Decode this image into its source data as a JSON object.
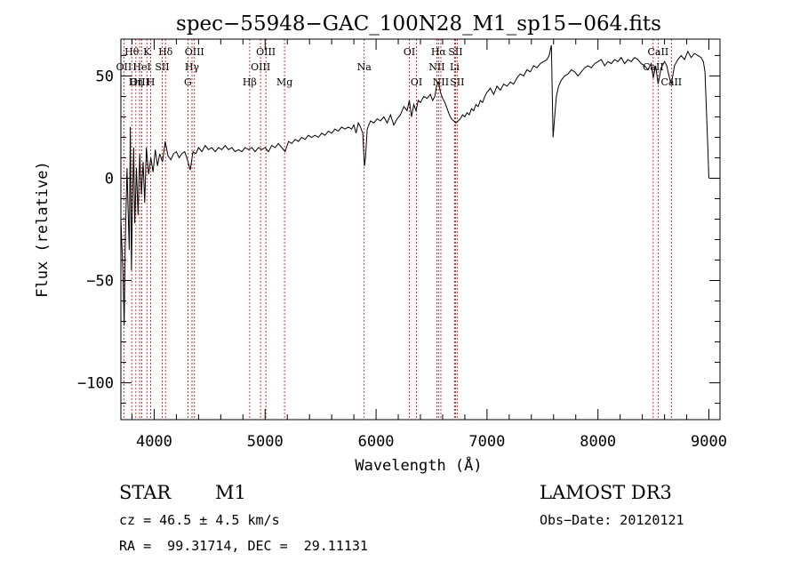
{
  "chart_data": {
    "type": "line",
    "title": "spec−55948−GAC_100N28_M1_sp15−064.fits",
    "xlabel": "Wavelength (Å)",
    "ylabel": "Flux (relative)",
    "xlim": [
      3700,
      9100
    ],
    "ylim": [
      -118,
      68
    ],
    "xticks": [
      4000,
      5000,
      6000,
      7000,
      8000,
      9000
    ],
    "xtick_labels": [
      "4000",
      "5000",
      "6000",
      "7000",
      "8000",
      "9000"
    ],
    "yticks": [
      -100,
      -50,
      0,
      50
    ],
    "ytick_labels": [
      "−100",
      "−50",
      "0",
      "50"
    ],
    "series": [
      {
        "name": "spectrum",
        "points": [
          [
            3700,
            -20
          ],
          [
            3720,
            -48
          ],
          [
            3730,
            -72
          ],
          [
            3740,
            -30
          ],
          [
            3755,
            5
          ],
          [
            3765,
            -15
          ],
          [
            3775,
            -35
          ],
          [
            3785,
            25
          ],
          [
            3795,
            -45
          ],
          [
            3805,
            -10
          ],
          [
            3815,
            15
          ],
          [
            3825,
            -22
          ],
          [
            3840,
            5
          ],
          [
            3855,
            -18
          ],
          [
            3870,
            12
          ],
          [
            3885,
            -8
          ],
          [
            3900,
            8
          ],
          [
            3915,
            -12
          ],
          [
            3930,
            15
          ],
          [
            3950,
            2
          ],
          [
            3970,
            10
          ],
          [
            3990,
            3
          ],
          [
            4010,
            14
          ],
          [
            4030,
            6
          ],
          [
            4050,
            12
          ],
          [
            4075,
            8
          ],
          [
            4100,
            18
          ],
          [
            4125,
            11
          ],
          [
            4150,
            9
          ],
          [
            4175,
            12
          ],
          [
            4200,
            13
          ],
          [
            4225,
            10
          ],
          [
            4250,
            12
          ],
          [
            4275,
            13
          ],
          [
            4300,
            9
          ],
          [
            4325,
            4
          ],
          [
            4350,
            13
          ],
          [
            4375,
            12
          ],
          [
            4400,
            15
          ],
          [
            4430,
            13
          ],
          [
            4460,
            16
          ],
          [
            4490,
            14
          ],
          [
            4520,
            15
          ],
          [
            4550,
            13
          ],
          [
            4580,
            15
          ],
          [
            4610,
            14
          ],
          [
            4640,
            16
          ],
          [
            4670,
            14
          ],
          [
            4700,
            15
          ],
          [
            4730,
            13
          ],
          [
            4760,
            14
          ],
          [
            4790,
            13
          ],
          [
            4820,
            15
          ],
          [
            4850,
            14
          ],
          [
            4880,
            15
          ],
          [
            4910,
            13
          ],
          [
            4940,
            15
          ],
          [
            4970,
            14
          ],
          [
            5000,
            15
          ],
          [
            5030,
            13
          ],
          [
            5060,
            16
          ],
          [
            5090,
            15
          ],
          [
            5120,
            17
          ],
          [
            5150,
            15
          ],
          [
            5180,
            13
          ],
          [
            5210,
            18
          ],
          [
            5240,
            17
          ],
          [
            5270,
            19
          ],
          [
            5300,
            18
          ],
          [
            5330,
            20
          ],
          [
            5360,
            19
          ],
          [
            5390,
            21
          ],
          [
            5420,
            20
          ],
          [
            5450,
            21
          ],
          [
            5480,
            20
          ],
          [
            5510,
            22
          ],
          [
            5540,
            21
          ],
          [
            5570,
            23
          ],
          [
            5600,
            22
          ],
          [
            5630,
            24
          ],
          [
            5660,
            23
          ],
          [
            5690,
            25
          ],
          [
            5720,
            24
          ],
          [
            5750,
            25
          ],
          [
            5780,
            24
          ],
          [
            5800,
            26
          ],
          [
            5820,
            22
          ],
          [
            5840,
            27
          ],
          [
            5860,
            25
          ],
          [
            5880,
            22
          ],
          [
            5895,
            6
          ],
          [
            5905,
            10
          ],
          [
            5920,
            24
          ],
          [
            5950,
            28
          ],
          [
            5980,
            27
          ],
          [
            6010,
            29
          ],
          [
            6040,
            28
          ],
          [
            6070,
            30
          ],
          [
            6100,
            27
          ],
          [
            6130,
            31
          ],
          [
            6160,
            26
          ],
          [
            6190,
            29
          ],
          [
            6220,
            31
          ],
          [
            6250,
            35
          ],
          [
            6280,
            33
          ],
          [
            6300,
            38
          ],
          [
            6320,
            30
          ],
          [
            6340,
            36
          ],
          [
            6360,
            33
          ],
          [
            6380,
            38
          ],
          [
            6400,
            37
          ],
          [
            6430,
            40
          ],
          [
            6460,
            39
          ],
          [
            6490,
            41
          ],
          [
            6510,
            38
          ],
          [
            6530,
            40
          ],
          [
            6545,
            45
          ],
          [
            6563,
            47
          ],
          [
            6580,
            42
          ],
          [
            6600,
            39
          ],
          [
            6620,
            37
          ],
          [
            6640,
            34
          ],
          [
            6660,
            31
          ],
          [
            6680,
            29
          ],
          [
            6700,
            28
          ],
          [
            6720,
            27
          ],
          [
            6740,
            28
          ],
          [
            6760,
            29
          ],
          [
            6780,
            31
          ],
          [
            6800,
            30
          ],
          [
            6820,
            32
          ],
          [
            6840,
            31
          ],
          [
            6860,
            34
          ],
          [
            6880,
            33
          ],
          [
            6900,
            36
          ],
          [
            6920,
            35
          ],
          [
            6940,
            38
          ],
          [
            6960,
            37
          ],
          [
            6980,
            40
          ],
          [
            7000,
            42
          ],
          [
            7030,
            44
          ],
          [
            7060,
            41
          ],
          [
            7090,
            45
          ],
          [
            7120,
            43
          ],
          [
            7150,
            46
          ],
          [
            7180,
            45
          ],
          [
            7210,
            47
          ],
          [
            7240,
            46
          ],
          [
            7270,
            49
          ],
          [
            7300,
            51
          ],
          [
            7330,
            50
          ],
          [
            7360,
            53
          ],
          [
            7390,
            52
          ],
          [
            7420,
            55
          ],
          [
            7450,
            54
          ],
          [
            7480,
            56
          ],
          [
            7510,
            57
          ],
          [
            7540,
            58
          ],
          [
            7560,
            60
          ],
          [
            7580,
            65
          ],
          [
            7595,
            20
          ],
          [
            7610,
            30
          ],
          [
            7625,
            40
          ],
          [
            7645,
            45
          ],
          [
            7670,
            48
          ],
          [
            7700,
            50
          ],
          [
            7730,
            51
          ],
          [
            7760,
            53
          ],
          [
            7790,
            52
          ],
          [
            7820,
            50
          ],
          [
            7850,
            52
          ],
          [
            7880,
            54
          ],
          [
            7910,
            55
          ],
          [
            7940,
            54
          ],
          [
            7970,
            56
          ],
          [
            8000,
            57
          ],
          [
            8030,
            58
          ],
          [
            8060,
            55
          ],
          [
            8090,
            57
          ],
          [
            8120,
            56
          ],
          [
            8150,
            58
          ],
          [
            8180,
            57
          ],
          [
            8210,
            59
          ],
          [
            8240,
            56
          ],
          [
            8270,
            58
          ],
          [
            8300,
            57
          ],
          [
            8330,
            59
          ],
          [
            8360,
            58
          ],
          [
            8390,
            56
          ],
          [
            8420,
            55
          ],
          [
            8450,
            53
          ],
          [
            8480,
            56
          ],
          [
            8498,
            49
          ],
          [
            8520,
            55
          ],
          [
            8542,
            46
          ],
          [
            8570,
            54
          ],
          [
            8600,
            57
          ],
          [
            8620,
            55
          ],
          [
            8640,
            50
          ],
          [
            8662,
            46
          ],
          [
            8690,
            55
          ],
          [
            8720,
            58
          ],
          [
            8750,
            60
          ],
          [
            8780,
            58
          ],
          [
            8810,
            62
          ],
          [
            8840,
            59
          ],
          [
            8870,
            61
          ],
          [
            8900,
            60
          ],
          [
            8930,
            59
          ],
          [
            8950,
            57
          ],
          [
            8965,
            52
          ],
          [
            8980,
            30
          ],
          [
            8990,
            15
          ],
          [
            9000,
            0
          ]
        ]
      }
    ],
    "spectral_lines": [
      {
        "label": "Hθ",
        "x": 3798,
        "row": 0
      },
      {
        "label": "OII",
        "x": 3727,
        "row": 1
      },
      {
        "label": "OIII",
        "x": 3869,
        "row": 2
      },
      {
        "label": "K",
        "x": 3934,
        "row": 0
      },
      {
        "label": "HeI",
        "x": 3889,
        "row": 1
      },
      {
        "label": "Hη",
        "x": 3835,
        "row": 2
      },
      {
        "label": "SII",
        "x": 4072,
        "row": 1
      },
      {
        "label": "H",
        "x": 3969,
        "row": 2
      },
      {
        "label": "Hδ",
        "x": 4102,
        "row": 0
      },
      {
        "label": "OIII",
        "x": 4363,
        "row": 0
      },
      {
        "label": "Hγ",
        "x": 4341,
        "row": 1
      },
      {
        "label": "G",
        "x": 4304,
        "row": 2
      },
      {
        "label": "OIII",
        "x": 5007,
        "row": 0
      },
      {
        "label": "OIII",
        "x": 4959,
        "row": 1
      },
      {
        "label": "Hβ",
        "x": 4861,
        "row": 2
      },
      {
        "label": "Mg",
        "x": 5175,
        "row": 2
      },
      {
        "label": "Na",
        "x": 5893,
        "row": 1
      },
      {
        "label": "OI",
        "x": 6300,
        "row": 0
      },
      {
        "label": "OI",
        "x": 6364,
        "row": 2
      },
      {
        "label": "Hα",
        "x": 6563,
        "row": 0
      },
      {
        "label": "SII",
        "x": 6716,
        "row": 0
      },
      {
        "label": "NII",
        "x": 6548,
        "row": 1
      },
      {
        "label": "Li",
        "x": 6708,
        "row": 1
      },
      {
        "label": "NII",
        "x": 6584,
        "row": 2
      },
      {
        "label": "SII",
        "x": 6731,
        "row": 2
      },
      {
        "label": "CaII",
        "x": 8542,
        "row": 0
      },
      {
        "label": "CaII",
        "x": 8498,
        "row": 1
      },
      {
        "label": "CaII",
        "x": 8662,
        "row": 2
      }
    ]
  },
  "footer": {
    "object_class": "STAR",
    "subclass": "M1",
    "survey": "LAMOST DR3",
    "redshift": "cz = 46.5 ± 4.5 km/s",
    "obs_date": "Obs−Date: 20120121",
    "coords": "RA =  99.31714, DEC =  29.11131"
  }
}
